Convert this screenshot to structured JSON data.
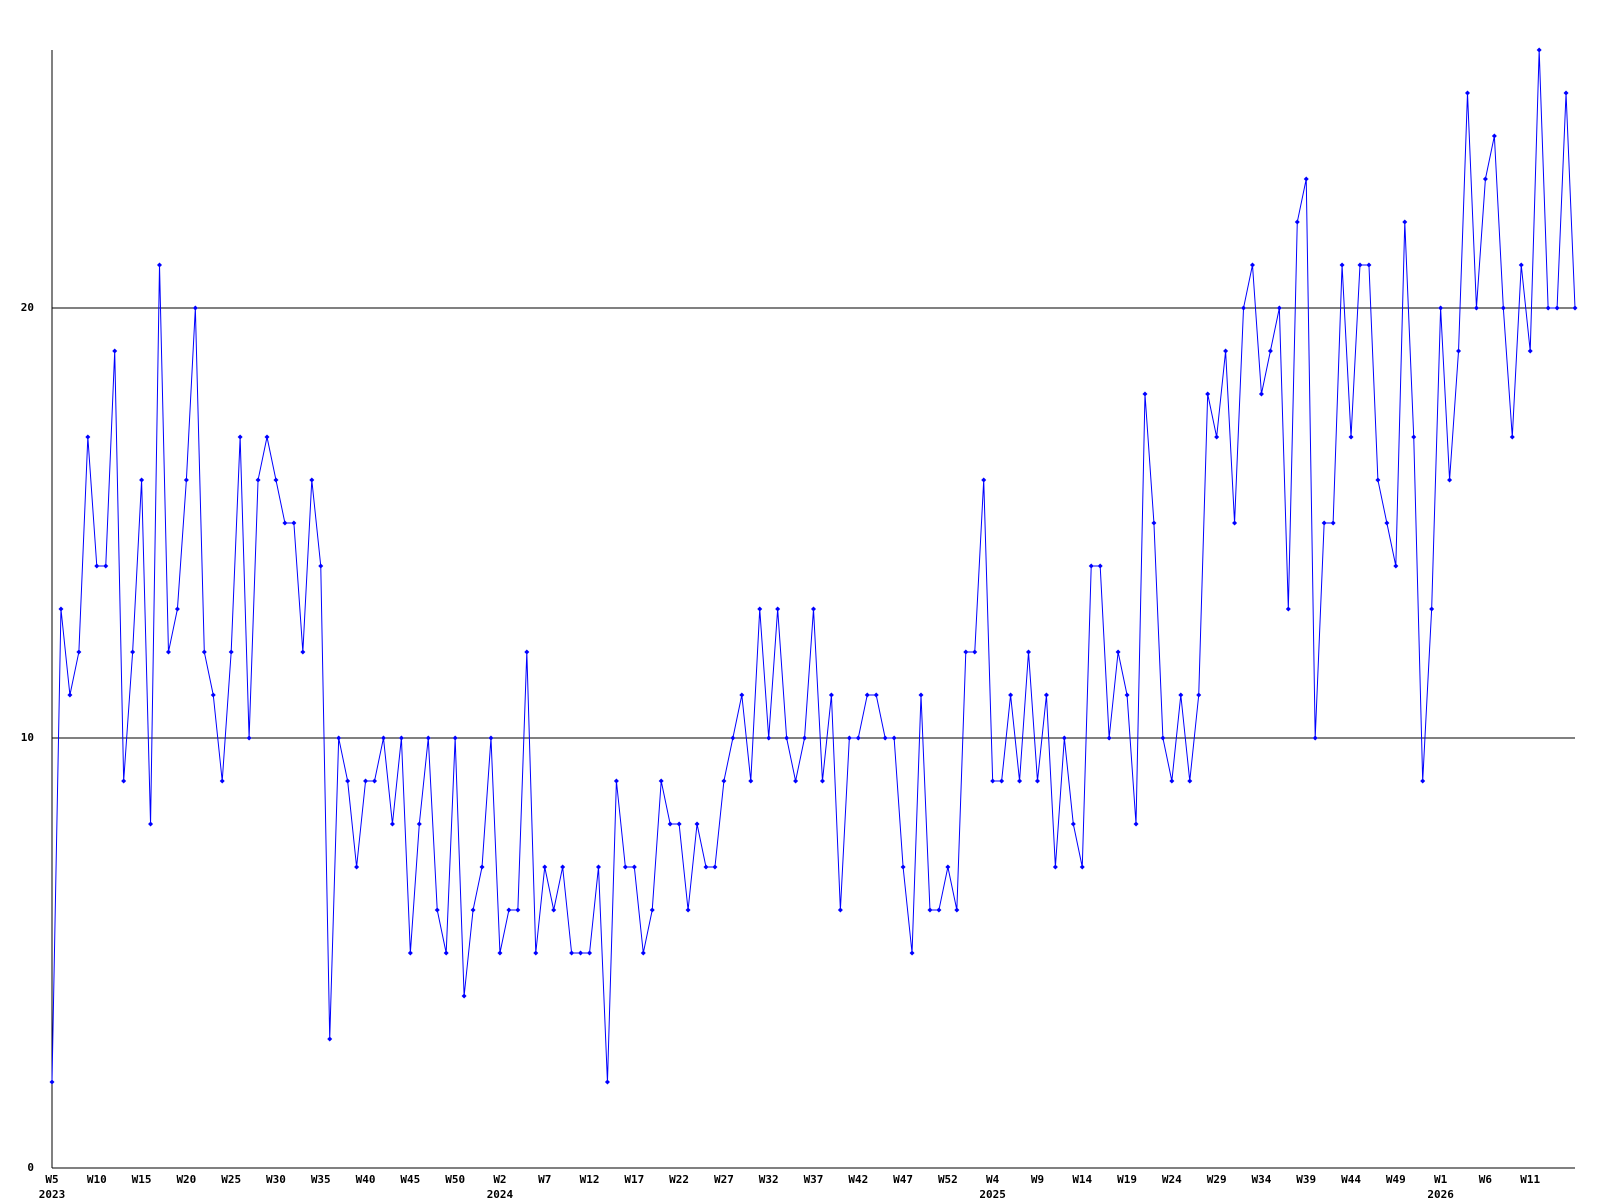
{
  "chart_data": {
    "type": "line",
    "color": "#0000ff",
    "grid": true,
    "ylim": [
      0,
      26
    ],
    "yticks": [
      0,
      10,
      20
    ],
    "categories": [
      "W5",
      null,
      null,
      null,
      null,
      "W10",
      null,
      null,
      null,
      null,
      "W15",
      null,
      null,
      null,
      null,
      "W20",
      null,
      null,
      null,
      null,
      "W25",
      null,
      null,
      null,
      null,
      "W30",
      null,
      null,
      null,
      null,
      "W35",
      null,
      null,
      null,
      null,
      "W40",
      null,
      null,
      null,
      null,
      "W45",
      null,
      null,
      null,
      null,
      "W50",
      null,
      null,
      null,
      null,
      "W2",
      null,
      null,
      null,
      null,
      "W7",
      null,
      null,
      null,
      null,
      "W12",
      null,
      null,
      null,
      null,
      "W17",
      null,
      null,
      null,
      null,
      "W22",
      null,
      null,
      null,
      null,
      "W27",
      null,
      null,
      null,
      null,
      "W32",
      null,
      null,
      null,
      null,
      "W37",
      null,
      null,
      null,
      null,
      "W42",
      null,
      null,
      null,
      null,
      "W47",
      null,
      null,
      null,
      null,
      "W52",
      null,
      null,
      null,
      null,
      "W4",
      null,
      null,
      null,
      null,
      "W9",
      null,
      null,
      null,
      null,
      "W14",
      null,
      null,
      null,
      null,
      "W19",
      null,
      null,
      null,
      null,
      "W24",
      null,
      null,
      null,
      null,
      "W29",
      null,
      null,
      null,
      null,
      "W34",
      null,
      null,
      null,
      null,
      "W39",
      null,
      null,
      null,
      null,
      "W44",
      null,
      null,
      null,
      null,
      "W49",
      null,
      null,
      null,
      null,
      "W1",
      null,
      null,
      null,
      null,
      "W6",
      null,
      null,
      null,
      null,
      "W11",
      null,
      null,
      null,
      null,
      null
    ],
    "years": [
      "2023",
      null,
      null,
      null,
      null,
      null,
      null,
      null,
      null,
      null,
      null,
      null,
      null,
      null,
      null,
      null,
      null,
      null,
      null,
      null,
      null,
      null,
      null,
      null,
      null,
      null,
      null,
      null,
      null,
      null,
      null,
      null,
      null,
      null,
      null,
      null,
      null,
      null,
      null,
      null,
      null,
      null,
      null,
      null,
      null,
      null,
      null,
      null,
      null,
      null,
      "2024",
      null,
      null,
      null,
      null,
      null,
      null,
      null,
      null,
      null,
      null,
      null,
      null,
      null,
      null,
      null,
      null,
      null,
      null,
      null,
      null,
      null,
      null,
      null,
      null,
      null,
      null,
      null,
      null,
      null,
      null,
      null,
      null,
      null,
      null,
      null,
      null,
      null,
      null,
      null,
      null,
      null,
      null,
      null,
      null,
      null,
      null,
      null,
      null,
      null,
      null,
      null,
      null,
      null,
      null,
      "2025",
      null,
      null,
      null,
      null,
      null,
      null,
      null,
      null,
      null,
      null,
      null,
      null,
      null,
      null,
      null,
      null,
      null,
      null,
      null,
      null,
      null,
      null,
      null,
      null,
      null,
      null,
      null,
      null,
      null,
      null,
      null,
      null,
      null,
      null,
      null,
      null,
      null,
      null,
      null,
      null,
      null,
      null,
      null,
      null,
      null,
      null,
      null,
      null,
      null,
      "2026",
      null,
      null,
      null,
      null,
      null,
      null,
      null,
      null,
      null,
      null,
      null,
      null,
      null,
      null,
      null
    ],
    "values": [
      2,
      13,
      11,
      12,
      17,
      14,
      14,
      19,
      9,
      12,
      16,
      8,
      21,
      12,
      13,
      16,
      20,
      12,
      11,
      9,
      12,
      17,
      10,
      16,
      17,
      16,
      15,
      15,
      12,
      16,
      14,
      3,
      10,
      9,
      7,
      9,
      9,
      10,
      8,
      10,
      5,
      8,
      10,
      6,
      5,
      10,
      4,
      6,
      7,
      10,
      5,
      6,
      6,
      12,
      5,
      7,
      6,
      7,
      5,
      5,
      5,
      7,
      2,
      9,
      7,
      7,
      5,
      6,
      9,
      8,
      8,
      6,
      8,
      7,
      7,
      9,
      10,
      11,
      9,
      13,
      10,
      13,
      10,
      9,
      10,
      13,
      9,
      11,
      6,
      10,
      10,
      11,
      11,
      10,
      10,
      7,
      5,
      11,
      6,
      6,
      7,
      6,
      12,
      12,
      16,
      9,
      9,
      11,
      9,
      12,
      9,
      11,
      7,
      10,
      8,
      7,
      14,
      14,
      10,
      12,
      11,
      8,
      18,
      15,
      10,
      9,
      11,
      9,
      11,
      18,
      17,
      19,
      15,
      20,
      21,
      18,
      19,
      20,
      13,
      22,
      23,
      10,
      15,
      15,
      21,
      17,
      21,
      21,
      16,
      15,
      14,
      22,
      17,
      9,
      13,
      20,
      16,
      19,
      25,
      20,
      23,
      24,
      20,
      17,
      21,
      19,
      26,
      20,
      20,
      25,
      20
    ]
  }
}
